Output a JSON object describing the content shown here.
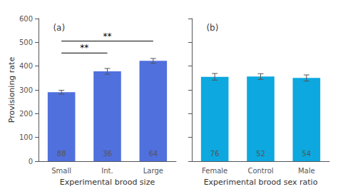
{
  "chart_data": [
    {
      "type": "bar",
      "title": "(a)",
      "categories": [
        "Small",
        "Int.",
        "Large"
      ],
      "values": [
        290,
        378,
        422
      ],
      "errors": [
        8,
        12,
        10
      ],
      "annotations": [
        {
          "text": "88",
          "x": "Small",
          "y": 18
        },
        {
          "text": "36",
          "x": "Int.",
          "y": 18
        },
        {
          "text": "64",
          "x": "Large",
          "y": 18
        }
      ],
      "brackets": [
        {
          "x1": "Small",
          "x2": "Int.",
          "y": 455,
          "text": "**"
        },
        {
          "x1": "Small",
          "x2": "Large",
          "y": 505,
          "text": "**"
        }
      ],
      "xlabel": "Experimental brood size",
      "ylabel": "Provisioning rate",
      "ylim": [
        0,
        600
      ],
      "yticks": [
        0,
        100,
        200,
        300,
        400,
        500,
        600
      ],
      "grid": false
    },
    {
      "type": "bar",
      "title": "(b)",
      "categories": [
        "Female",
        "Control",
        "Male"
      ],
      "values": [
        355,
        356,
        350
      ],
      "errors": [
        14,
        12,
        13
      ],
      "annotations": [
        {
          "text": "76",
          "x": "Female",
          "y": 18
        },
        {
          "text": "52",
          "x": "Control",
          "y": 18
        },
        {
          "text": "54",
          "x": "Male",
          "y": 18
        }
      ],
      "xlabel": "Experimental brood sex ratio",
      "ylim": [
        0,
        600
      ],
      "yticks": [
        0,
        100,
        200,
        300,
        400,
        500,
        600
      ],
      "grid": false,
      "tick_labels": "x"
    }
  ]
}
